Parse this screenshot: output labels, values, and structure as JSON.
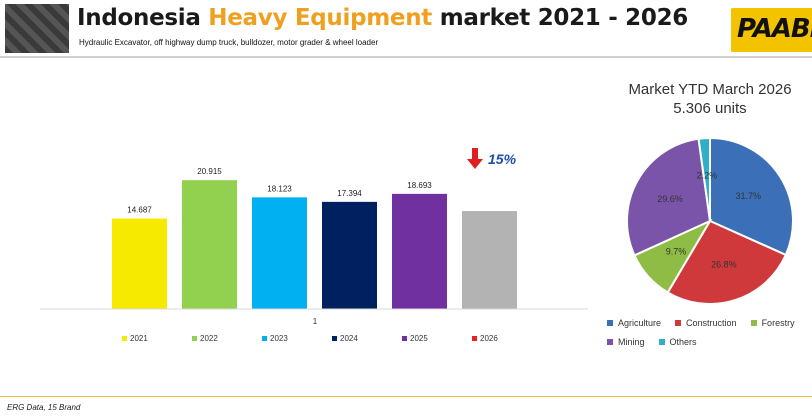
{
  "header": {
    "title_part1": "Indonesia ",
    "title_highlight": "Heavy Equipment",
    "title_part2": " market 2021 - 2026",
    "subtitle": "Hydraulic Excavator, off highway dump truck, bulldozer, motor grader & wheel loader",
    "logo_text": "PAABI"
  },
  "footer": {
    "source": "ERG Data, 15 Brand"
  },
  "chart_data": [
    {
      "type": "bar",
      "categories": [
        "1"
      ],
      "series": [
        {
          "name": "2021",
          "value": 14.687,
          "label": "14.687",
          "color": "#f5ea00"
        },
        {
          "name": "2022",
          "value": 20.915,
          "label": "20.915",
          "color": "#92d050"
        },
        {
          "name": "2023",
          "value": 18.123,
          "label": "18.123",
          "color": "#00b0f0"
        },
        {
          "name": "2024",
          "value": 17.394,
          "label": "17.394",
          "color": "#002060"
        },
        {
          "name": "2025",
          "value": 18.693,
          "label": "18.693",
          "color": "#7030a0"
        },
        {
          "name": "2026",
          "value": 15.9,
          "label": "",
          "color": "#b3b3b3",
          "legend_color": "#e8202a"
        }
      ],
      "annotation": {
        "text": "15%",
        "direction": "down",
        "arrow_color": "#e02020",
        "text_color": "#1f4fa8"
      },
      "ylim": [
        0,
        25
      ],
      "legend": "bottom",
      "grid": false
    },
    {
      "type": "pie",
      "title": "Market YTD March 2026",
      "subtitle": "5.306 units",
      "slices": [
        {
          "name": "Agriculture",
          "value": 31.7,
          "label": "31.7%",
          "color": "#3b70b8"
        },
        {
          "name": "Construction",
          "value": 26.8,
          "label": "26.8%",
          "color": "#d0393b"
        },
        {
          "name": "Forestry",
          "value": 9.7,
          "label": "9.7%",
          "color": "#8fbc45"
        },
        {
          "name": "Mining",
          "value": 29.6,
          "label": "29.6%",
          "color": "#7a54a8"
        },
        {
          "name": "Others",
          "value": 2.2,
          "label": "2.2%",
          "color": "#2fb0c8"
        }
      ],
      "legend": "bottom"
    }
  ]
}
